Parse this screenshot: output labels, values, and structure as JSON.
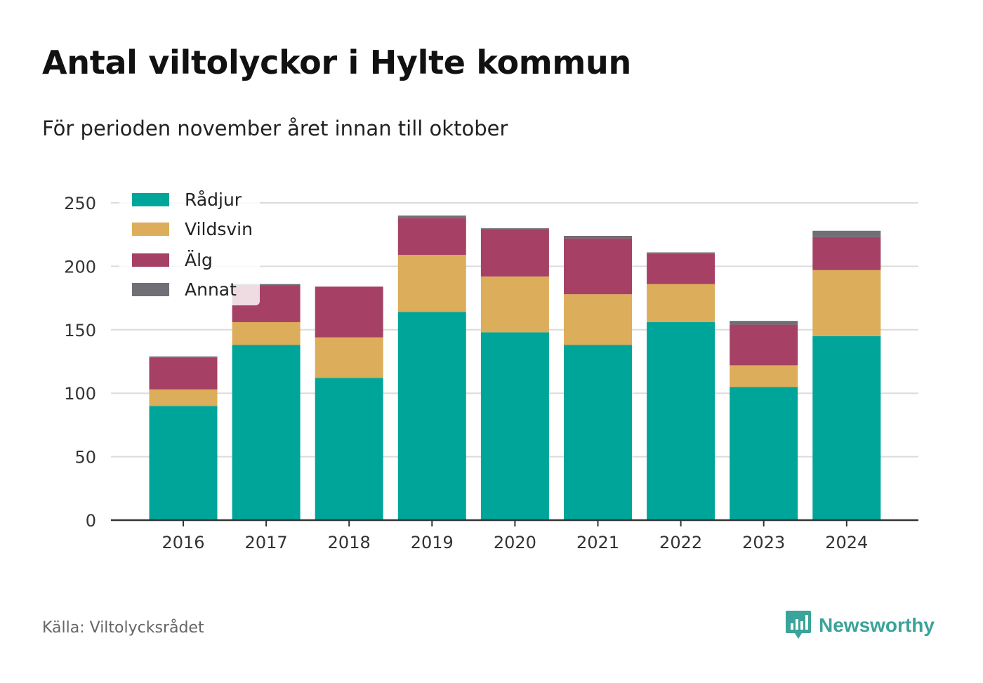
{
  "title": "Antal viltolyckor i Hylte kommun",
  "subtitle": "För perioden november året innan till oktober",
  "source": "Källa: Viltolycksrådet",
  "brand": {
    "name": "Newsworthy",
    "icon": "bar-chart-speech-bubble-icon",
    "color": "#3aa39a"
  },
  "chart_data": {
    "type": "bar",
    "stacked": true,
    "categories": [
      "2016",
      "2017",
      "2018",
      "2019",
      "2020",
      "2021",
      "2022",
      "2023",
      "2024"
    ],
    "series": [
      {
        "name": "Rådjur",
        "color": "#00a59a",
        "values": [
          90,
          138,
          112,
          164,
          148,
          138,
          156,
          105,
          145
        ]
      },
      {
        "name": "Vildsvin",
        "color": "#dcad5a",
        "values": [
          13,
          18,
          32,
          45,
          44,
          40,
          30,
          17,
          52
        ]
      },
      {
        "name": "Älg",
        "color": "#a64165",
        "values": [
          25,
          29,
          40,
          29,
          37,
          44,
          24,
          32,
          26
        ]
      },
      {
        "name": "Annat",
        "color": "#6f6f75",
        "values": [
          1,
          1,
          0,
          2,
          1,
          2,
          1,
          3,
          5
        ]
      }
    ],
    "ylim": [
      0,
      250
    ],
    "yticks": [
      0,
      50,
      100,
      150,
      200,
      250
    ],
    "xlabel": "",
    "ylabel": "",
    "grid": true,
    "legend": "top-left"
  }
}
